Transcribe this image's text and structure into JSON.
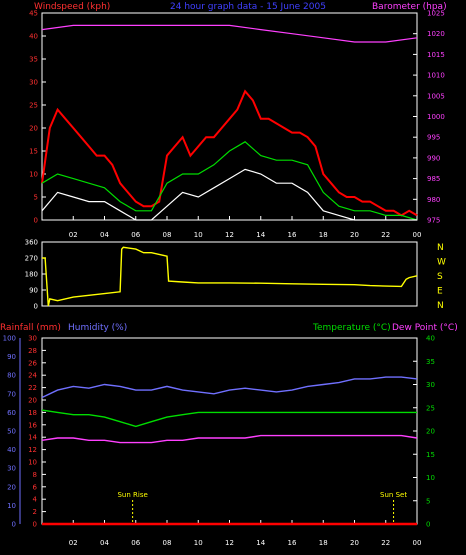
{
  "chart_data": [
    {
      "type": "line",
      "title": "24 hour graph data - 15 June 2005",
      "left_axis": {
        "label": "Windspeed (kph)",
        "ylim": [
          0,
          45
        ],
        "ticks": [
          "0",
          "5",
          "10",
          "15",
          "20",
          "25",
          "30",
          "35",
          "40",
          "45"
        ],
        "color": "#ff3030"
      },
      "right_axis": {
        "label": "Barometer (hpa)",
        "ylim": [
          975,
          1025
        ],
        "ticks": [
          "975",
          "980",
          "985",
          "990",
          "995",
          "1000",
          "1005",
          "1010",
          "1015",
          "1020",
          "1025"
        ],
        "color": "#ff40ff"
      },
      "x_ticks": [
        "02",
        "04",
        "06",
        "08",
        "10",
        "12",
        "14",
        "16",
        "18",
        "20",
        "22",
        "00"
      ],
      "series": [
        {
          "color": "#ff0000",
          "axis": "left",
          "x": [
            0,
            0.5,
            1,
            1.5,
            2,
            2.5,
            3,
            3.5,
            4,
            4.5,
            5,
            5.5,
            6,
            6.5,
            7,
            7.5,
            8,
            8.5,
            9,
            9.5,
            10,
            10.5,
            11,
            11.5,
            12,
            12.5,
            13,
            13.5,
            14,
            14.5,
            15,
            15.5,
            16,
            16.5,
            17,
            17.5,
            18,
            18.5,
            19,
            19.5,
            20,
            20.5,
            21,
            21.5,
            22,
            22.5,
            23,
            23.5,
            24
          ],
          "y": [
            8,
            20,
            24,
            22,
            20,
            18,
            16,
            14,
            14,
            12,
            8,
            6,
            4,
            3,
            3,
            4,
            14,
            16,
            18,
            14,
            16,
            18,
            18,
            20,
            22,
            24,
            28,
            26,
            22,
            22,
            21,
            20,
            19,
            19,
            18,
            16,
            10,
            8,
            6,
            5,
            5,
            4,
            4,
            3,
            2,
            2,
            1,
            2,
            1
          ]
        },
        {
          "color": "#00dd00",
          "axis": "left",
          "x": [
            0,
            1,
            2,
            3,
            4,
            5,
            6,
            7,
            8,
            9,
            10,
            11,
            12,
            13,
            14,
            15,
            16,
            17,
            18,
            19,
            20,
            21,
            22,
            23,
            24
          ],
          "y": [
            8,
            10,
            9,
            8,
            7,
            4,
            2,
            2,
            8,
            10,
            10,
            12,
            15,
            17,
            14,
            13,
            13,
            12,
            6,
            3,
            2,
            2,
            1,
            1,
            0
          ]
        },
        {
          "color": "#ffffff",
          "axis": "left",
          "x": [
            0,
            1,
            2,
            3,
            4,
            5,
            6,
            7,
            8,
            9,
            10,
            11,
            12,
            13,
            14,
            15,
            16,
            17,
            18,
            19,
            20,
            21,
            22,
            23,
            24
          ],
          "y": [
            2,
            6,
            5,
            4,
            4,
            2,
            0,
            0,
            3,
            6,
            5,
            7,
            9,
            11,
            10,
            8,
            8,
            6,
            2,
            1,
            0,
            0,
            0,
            0,
            0
          ]
        },
        {
          "color": "#ff40ff",
          "axis": "right",
          "x": [
            0,
            2,
            4,
            6,
            8,
            10,
            12,
            14,
            16,
            18,
            20,
            22,
            24
          ],
          "y": [
            1021,
            1022,
            1022,
            1022,
            1022,
            1022,
            1022,
            1021,
            1020,
            1019,
            1018,
            1018,
            1019
          ]
        }
      ]
    },
    {
      "type": "line",
      "yticks": [
        "0",
        "90",
        "180",
        "270",
        "360"
      ],
      "ylim": [
        0,
        360
      ],
      "right_labels": [
        "N",
        "W",
        "S",
        "E",
        "N"
      ],
      "series": [
        {
          "color": "#ffff00",
          "x": [
            0,
            0.2,
            0.4,
            0.5,
            1,
            2,
            3,
            4,
            5,
            5.1,
            5.2,
            6,
            6.5,
            7,
            7.5,
            8,
            8.1,
            9,
            10,
            12,
            14,
            16,
            18,
            20,
            21,
            22,
            23,
            23.3,
            23.5,
            24
          ],
          "y": [
            270,
            270,
            0,
            40,
            30,
            50,
            60,
            70,
            80,
            320,
            330,
            320,
            300,
            300,
            290,
            280,
            140,
            135,
            130,
            130,
            128,
            125,
            122,
            120,
            115,
            112,
            110,
            150,
            160,
            170
          ]
        }
      ]
    },
    {
      "type": "line",
      "left_axis_labels": [
        "Rainfall (mm)",
        "Humidity (%)"
      ],
      "right_axis_labels": [
        "Temperature (°C)",
        "Dew Point (°C)"
      ],
      "humidity_ticks": [
        "0",
        "10",
        "20",
        "30",
        "40",
        "50",
        "60",
        "70",
        "80",
        "90",
        "100"
      ],
      "rain_ticks": [
        "0",
        "2",
        "4",
        "6",
        "8",
        "10",
        "12",
        "14",
        "16",
        "18",
        "20",
        "22",
        "24",
        "26",
        "28",
        "30"
      ],
      "temp_ticks": [
        "0",
        "5",
        "10",
        "15",
        "20",
        "25",
        "30",
        "35",
        "40"
      ],
      "annotations": [
        {
          "text": "Sun Rise",
          "x": 5.8
        },
        {
          "text": "Sun Set",
          "x": 22.5
        }
      ],
      "series": [
        {
          "color": "#7070ff",
          "axis": "humidity",
          "x": [
            0,
            1,
            2,
            3,
            4,
            5,
            6,
            7,
            8,
            9,
            10,
            11,
            12,
            13,
            14,
            15,
            16,
            17,
            18,
            19,
            20,
            21,
            22,
            23,
            24
          ],
          "y": [
            68,
            72,
            74,
            73,
            75,
            74,
            72,
            72,
            74,
            72,
            71,
            70,
            72,
            73,
            72,
            71,
            72,
            74,
            75,
            76,
            78,
            78,
            79,
            79,
            78
          ]
        },
        {
          "color": "#00dd00",
          "axis": "temp",
          "x": [
            0,
            1,
            2,
            3,
            4,
            5,
            6,
            7,
            8,
            9,
            10,
            11,
            12,
            13,
            14,
            15,
            16,
            17,
            18,
            19,
            20,
            21,
            22,
            23,
            24
          ],
          "y": [
            24.5,
            24,
            23.5,
            23.5,
            23,
            22,
            21,
            22,
            23,
            23.5,
            24,
            24,
            24,
            24,
            24,
            24,
            24,
            24,
            24,
            24,
            24,
            24,
            24,
            24,
            24
          ]
        },
        {
          "color": "#ff40ff",
          "axis": "temp",
          "x": [
            0,
            1,
            2,
            3,
            4,
            5,
            6,
            7,
            8,
            9,
            10,
            11,
            12,
            13,
            14,
            15,
            16,
            17,
            18,
            19,
            20,
            21,
            22,
            23,
            24
          ],
          "y": [
            18,
            18.5,
            18.5,
            18,
            18,
            17.5,
            17.5,
            17.5,
            18,
            18,
            18.5,
            18.5,
            18.5,
            18.5,
            19,
            19,
            19,
            19,
            19,
            19,
            19,
            19,
            19,
            19,
            18.5
          ]
        },
        {
          "color": "#ff0000",
          "axis": "rain",
          "x": [
            0,
            24
          ],
          "y": [
            0,
            0
          ]
        }
      ]
    }
  ]
}
